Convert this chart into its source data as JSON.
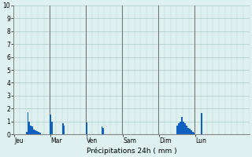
{
  "title": "Précipitations 24h ( mm )",
  "ylim": [
    0,
    10
  ],
  "yticks": [
    0,
    1,
    2,
    3,
    4,
    5,
    6,
    7,
    8,
    9,
    10
  ],
  "background_color": "#dff0f0",
  "bar_color": "#1060c0",
  "grid_color_h": "#a8c8c8",
  "grid_color_v": "#b8d0d0",
  "day_line_color": "#707070",
  "day_labels": [
    "Jeu",
    "Mar",
    "Ven",
    "Sam",
    "Dim",
    "Lun"
  ],
  "n_bars": 144,
  "values": [
    0.0,
    0.0,
    0.0,
    0.0,
    0.0,
    0.0,
    0.0,
    0.0,
    0.2,
    1.7,
    1.0,
    0.7,
    0.6,
    0.4,
    0.3,
    0.25,
    0.2,
    0.15,
    0.0,
    0.0,
    0.0,
    0.0,
    0.0,
    0.0,
    1.5,
    1.0,
    0.0,
    0.0,
    0.0,
    0.0,
    0.0,
    0.0,
    0.85,
    0.7,
    0.0,
    0.0,
    0.0,
    0.0,
    0.0,
    0.0,
    0.0,
    0.0,
    0.0,
    0.0,
    0.0,
    0.0,
    0.0,
    0.0,
    0.9,
    0.0,
    0.0,
    0.0,
    0.0,
    0.0,
    0.0,
    0.0,
    0.0,
    0.0,
    0.6,
    0.5,
    0.0,
    0.0,
    0.0,
    0.0,
    0.0,
    0.0,
    0.0,
    0.0,
    0.0,
    0.0,
    0.0,
    0.0,
    0.0,
    0.0,
    0.0,
    0.0,
    0.0,
    0.0,
    0.0,
    0.0,
    0.0,
    0.0,
    0.0,
    0.0,
    0.0,
    0.0,
    0.0,
    0.0,
    0.0,
    0.0,
    0.0,
    0.0,
    0.0,
    0.0,
    0.0,
    0.0,
    0.0,
    0.0,
    0.0,
    0.0,
    0.0,
    0.0,
    0.0,
    0.0,
    0.0,
    0.0,
    0.0,
    0.0,
    0.65,
    0.85,
    1.0,
    1.35,
    0.95,
    0.85,
    0.7,
    0.5,
    0.45,
    0.3,
    0.2,
    0.15,
    0.0,
    0.0,
    0.0,
    0.0,
    1.65,
    0.0,
    0.0,
    0.0,
    0.0,
    0.0,
    0.0,
    0.0,
    0.0,
    0.0,
    0.0,
    0.0,
    0.0,
    0.0,
    0.0,
    0.0,
    0.0,
    0.0,
    0.0,
    0.0,
    0.0,
    0.0,
    0.0,
    0.0,
    0.0,
    0.0,
    0.0,
    0.0,
    0.0,
    0.0,
    0.0,
    0.0
  ],
  "day_tick_positions": [
    0,
    24,
    48,
    72,
    96,
    120
  ]
}
